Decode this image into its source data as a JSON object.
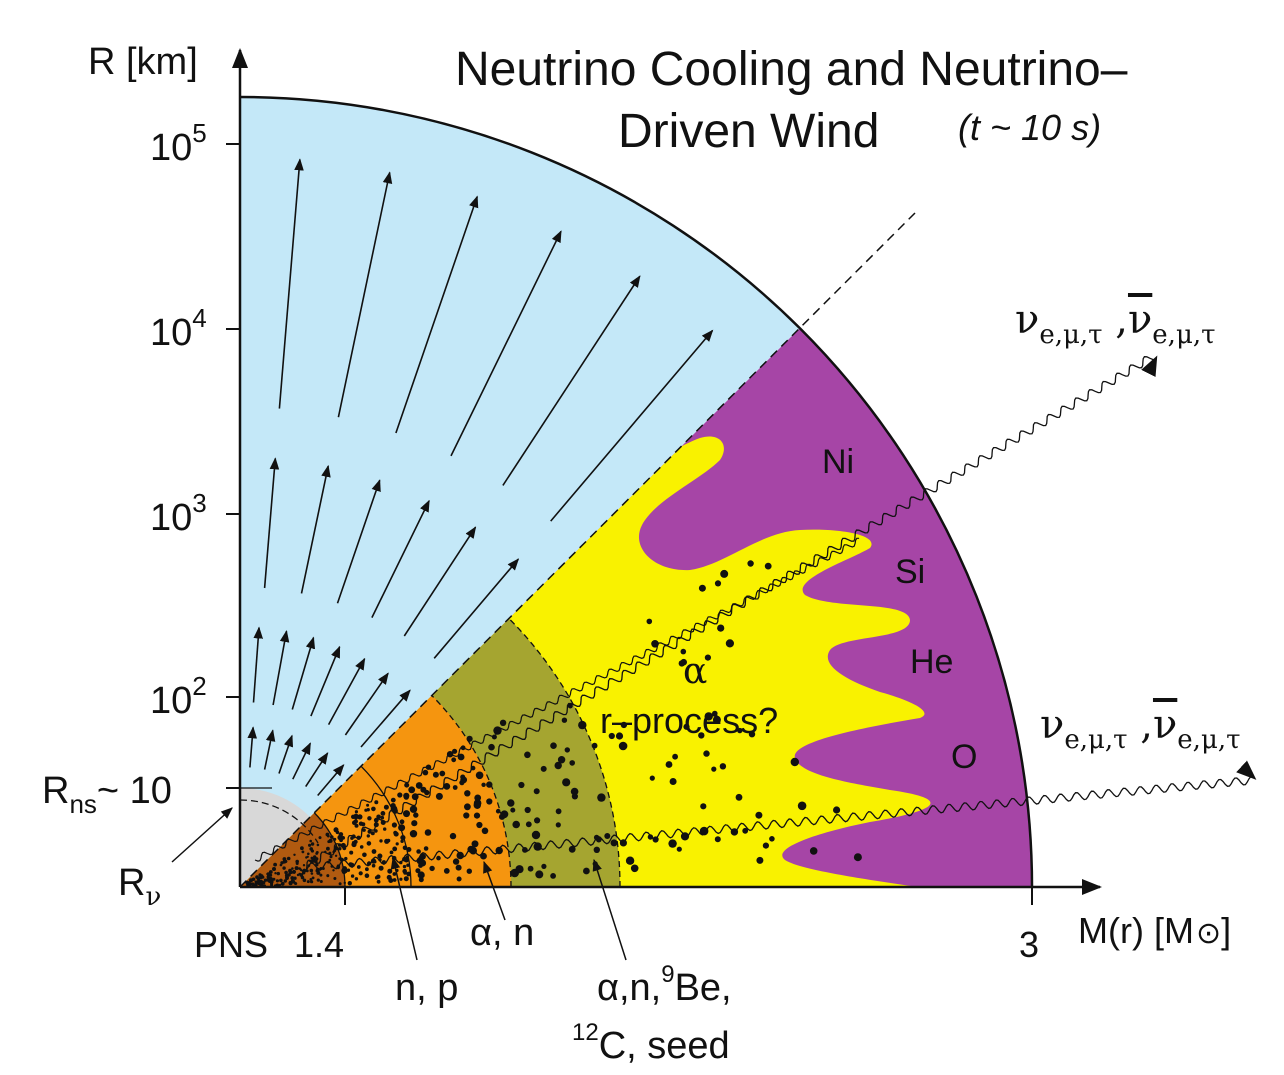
{
  "title_line1": "Neutrino Cooling and Neutrino–",
  "title_line2": "Driven Wind",
  "time_note": "(t ~ 10 s)",
  "y_axis_label": "R [km]",
  "x_axis_label_main": "M(r) [M",
  "x_axis_label_end": "]",
  "y_ticks": [
    {
      "base": "10",
      "exp": "5"
    },
    {
      "base": "10",
      "exp": "4"
    },
    {
      "base": "10",
      "exp": "3"
    },
    {
      "base": "10",
      "exp": "2"
    }
  ],
  "rns_label": {
    "main": "R",
    "sub": "ns",
    "rest": "~ 10"
  },
  "rnu_label": {
    "main": "R",
    "sub": "ν"
  },
  "x_marks": {
    "pns": "PNS",
    "m14": "1.4",
    "m3": "3"
  },
  "shell_labels": {
    "np": "n, p",
    "alpha_n": "α, n",
    "alpha_n_be_line1": {
      "pre": "α,n,",
      "sup": "9",
      "post": "Be,"
    },
    "alpha_n_be_line2": {
      "sup": "12",
      "post": "C, seed"
    }
  },
  "region_labels": {
    "alpha": "α",
    "rprocess": "r–process?",
    "ni": "Ni",
    "si": "Si",
    "he": "He",
    "o": "O"
  },
  "neutrino_label": {
    "nu": "ν",
    "sub": "e,μ,τ",
    "sep": " ,",
    "nubar": "ν"
  },
  "colors": {
    "wind": "#c4e8f8",
    "pns_core": "#d8d8d8",
    "inner_core": "#b05a10",
    "n_p_shell": "#f5950f",
    "alpha_shell": "#a5a530",
    "yellow": "#f9f200",
    "purple": "#a645a6"
  }
}
